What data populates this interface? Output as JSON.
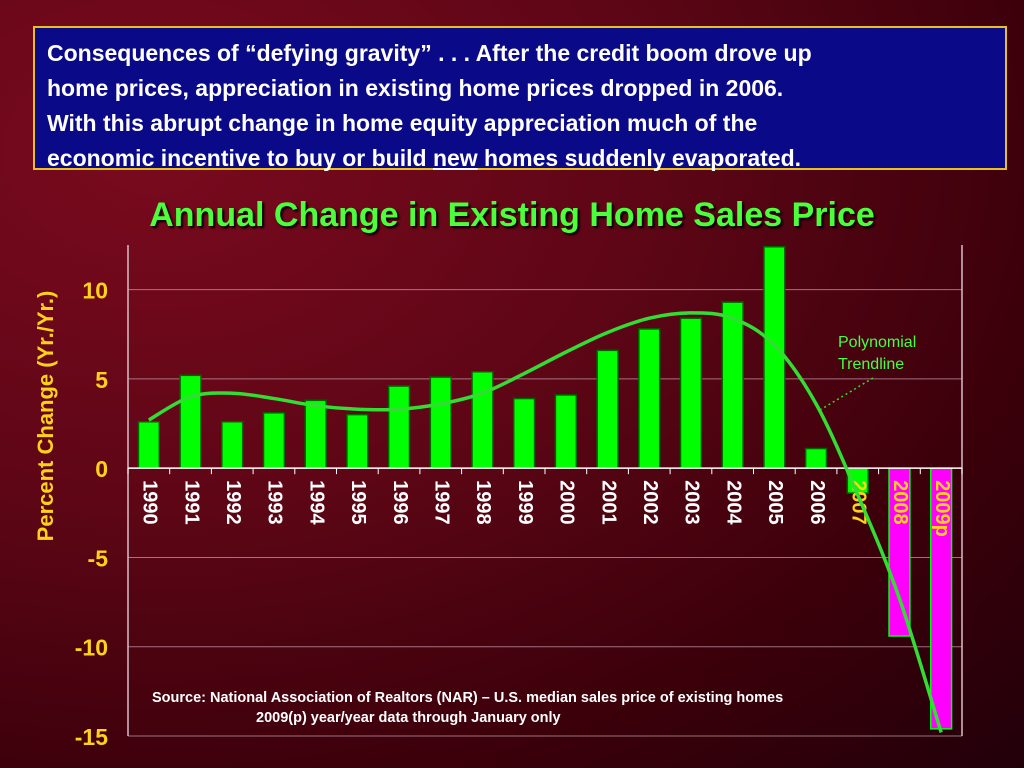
{
  "callout": {
    "line1": "Consequences of “defying gravity” . . . After the credit boom drove up",
    "line2": "home prices, appreciation in existing home prices dropped in 2006.",
    "line3": "With this abrupt change in home equity appreciation much of the",
    "line4_pre": "economic incentive to buy or build ",
    "line4_underlined": "new",
    "line4_post": " homes suddenly evaporated."
  },
  "trendline_label": "Polynomial\nTrendline",
  "source": {
    "line1": "Source: National Association of Realtors (NAR) – U.S. median sales price of existing homes",
    "line2": "2009(p) year/year data through January only"
  },
  "colors": {
    "background": "#5e0616",
    "callout_bg": "#0a0a88",
    "callout_border": "#e8c020",
    "positive_bar": "#00ff00",
    "negative_bar": "#ff00ff",
    "trendline": "#33dd33",
    "title": "#4cff3c",
    "axis_text": "#ffd21a"
  },
  "chart_data": {
    "type": "bar",
    "title": "Annual Change in Existing Home Sales Price",
    "ylabel": "Percent Change (Yr./Yr.)",
    "xlabel": "",
    "categories": [
      "1990",
      "1991",
      "1992",
      "1993",
      "1994",
      "1995",
      "1996",
      "1997",
      "1998",
      "1999",
      "2000",
      "2001",
      "2002",
      "2003",
      "2004",
      "2005",
      "2006",
      "2007",
      "2008",
      "2009p"
    ],
    "values": [
      2.6,
      5.2,
      2.6,
      3.1,
      3.8,
      3.0,
      4.6,
      5.1,
      5.4,
      3.9,
      4.1,
      6.6,
      7.8,
      8.4,
      9.3,
      12.4,
      1.1,
      -1.4,
      -9.4,
      -14.6
    ],
    "yticks": [
      10,
      5,
      0,
      -5,
      -10,
      -15
    ],
    "ylim": [
      -15,
      12.5
    ],
    "grid": true,
    "trendline": {
      "name": "Polynomial Trendline",
      "values": [
        2.7,
        4.0,
        4.2,
        3.9,
        3.5,
        3.3,
        3.3,
        3.6,
        4.2,
        5.3,
        6.5,
        7.6,
        8.4,
        8.7,
        8.4,
        6.9,
        3.6,
        -1.5,
        -7.3,
        -14.8
      ]
    }
  }
}
